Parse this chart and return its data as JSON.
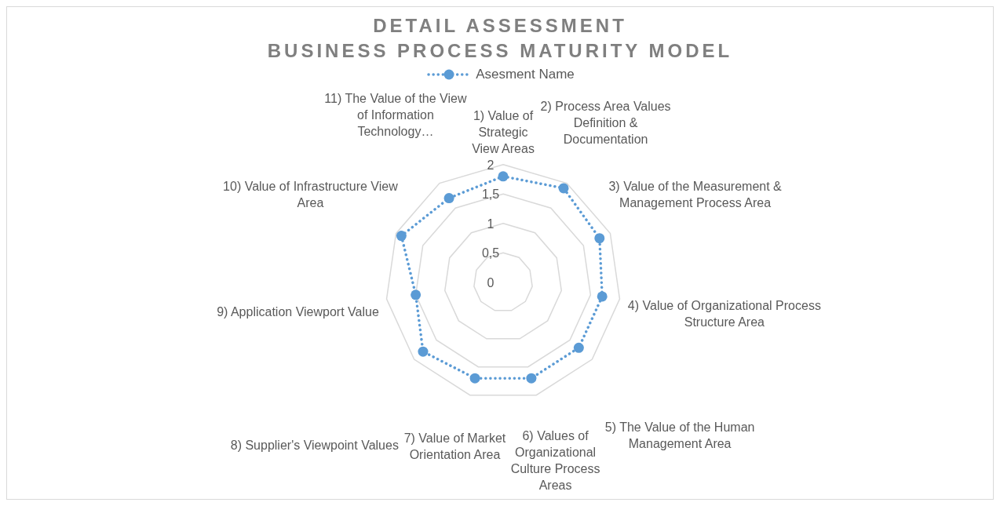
{
  "chart_data": {
    "type": "radar",
    "title": "DETAIL ASSESSMENT\nBUSINESS PROCESS MATURITY MODEL",
    "categories": [
      "1) Value of Strategic View Areas",
      "2) Process Area Values Definition & Documentation",
      "3) Value of the Measurement & Management Process Area",
      "4) Value of Organizational Process Structure Area",
      "5) The Value of the Human Management Area",
      "6) Values of Organizational Culture Process Areas",
      "7) Value of Market Orientation Area",
      "8) Supplier's Viewpoint Values",
      "9) Application Viewport Value",
      "10) Value of Infrastructure View Area",
      "11) The Value of the View of Information Technology…"
    ],
    "series": [
      {
        "name": "Asesment Name",
        "color": "#5b9bd5",
        "values": [
          1.8,
          1.9,
          1.8,
          1.7,
          1.7,
          1.7,
          1.7,
          1.8,
          1.5,
          1.9,
          1.7
        ]
      }
    ],
    "ylim": [
      0,
      2
    ],
    "yticks": [
      0,
      {
        "value": 0.5,
        "label": "0,5"
      },
      1,
      {
        "value": 1.5,
        "label": "1,5"
      },
      2
    ],
    "grid": true,
    "legend": "top",
    "marker": "circle",
    "line_style": "dotted"
  }
}
